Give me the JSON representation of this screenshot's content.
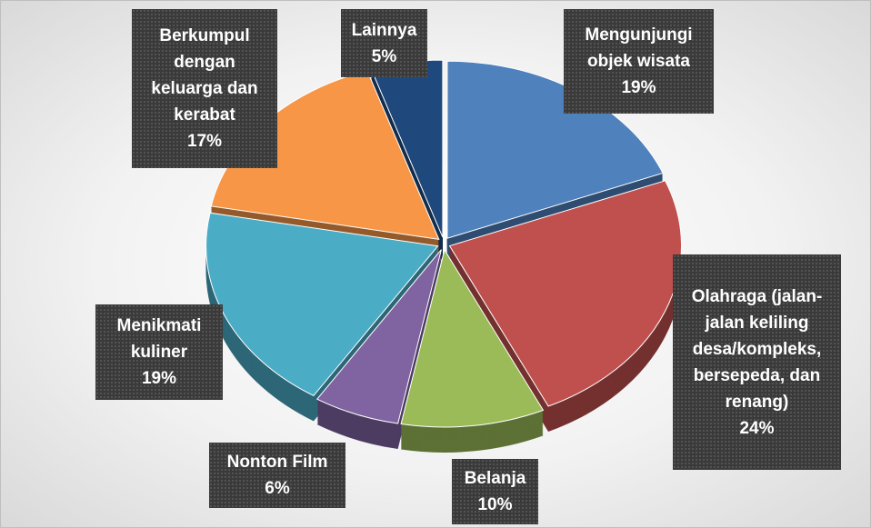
{
  "chart_data": {
    "type": "pie",
    "categories": [
      "Mengunjungi objek wisata",
      "Olahraga (jalan-jalan keliling desa/kompleks, bersepeda, dan renang)",
      "Belanja",
      "Nonton Film",
      "Menikmati kuliner",
      "Berkumpul dengan keluarga dan kerabat",
      "Lainnya"
    ],
    "values": [
      19,
      24,
      10,
      6,
      19,
      17,
      5
    ],
    "value_labels": [
      "19%",
      "24%",
      "10%",
      "6%",
      "19%",
      "17%",
      "5%"
    ],
    "colors": [
      "#4f81bd",
      "#c0504d",
      "#9bbb59",
      "#8064a2",
      "#4bacc6",
      "#f79646",
      "#1f497d"
    ]
  }
}
